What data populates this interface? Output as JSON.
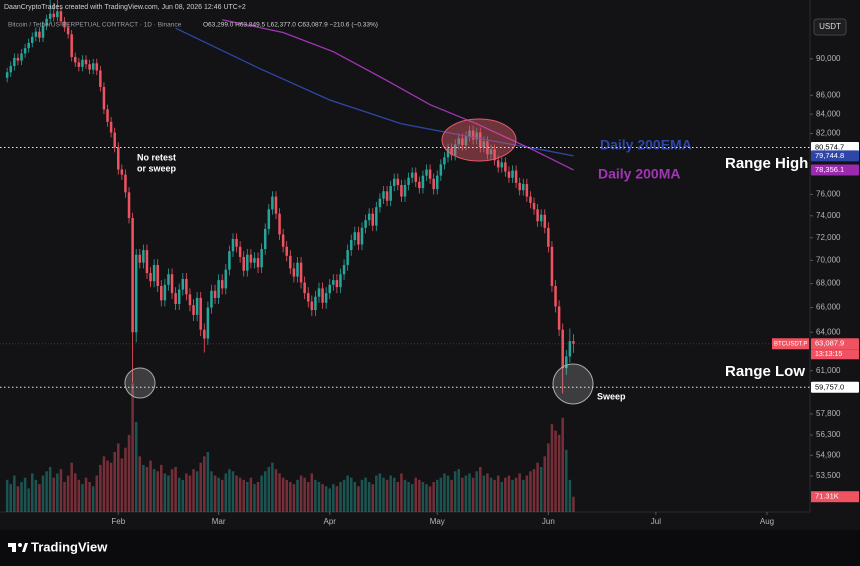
{
  "chart_data": {
    "type": "candlestick",
    "header": "DaanCryptoTrades created with TradingView.com, Jun 08, 2026 12:46 UTC+2",
    "symbol": "Bitcoin / TetherUS PERPETUAL CONTRACT · 1D · Binance",
    "ohlc_text": "O63,299.0 H63,849.5 L62,377.0 C63,087.9 −210.6 (−0.33%)",
    "currency": "USDT",
    "footer": "TradingView",
    "up_color": "#26a69a",
    "down_color": "#ef5361",
    "ylog": true,
    "grid": false,
    "ylim": [
      51150,
      94700
    ],
    "yticks": [
      {
        "value": 90000,
        "label": "90,000"
      },
      {
        "value": 86000,
        "label": "86,000"
      },
      {
        "value": 84000,
        "label": "84,000"
      },
      {
        "value": 82000,
        "label": "82,000"
      },
      {
        "value": 76000,
        "label": "76,000"
      },
      {
        "value": 74000,
        "label": "74,000"
      },
      {
        "value": 72000,
        "label": "72,000"
      },
      {
        "value": 70000,
        "label": "70,000"
      },
      {
        "value": 68000,
        "label": "68,000"
      },
      {
        "value": 66000,
        "label": "66,000"
      },
      {
        "value": 64000,
        "label": "64,000"
      },
      {
        "value": 61000,
        "label": "61,000"
      },
      {
        "value": 57800,
        "label": "57,800"
      },
      {
        "value": 56300,
        "label": "56,300"
      },
      {
        "value": 54900,
        "label": "54,900"
      },
      {
        "value": 53500,
        "label": "53,500"
      }
    ],
    "xlim": [
      -2,
      224
    ],
    "xticks": [
      {
        "value": 31,
        "label": "Feb"
      },
      {
        "value": 59,
        "label": "Mar"
      },
      {
        "value": 90,
        "label": "Apr"
      },
      {
        "value": 120,
        "label": "May"
      },
      {
        "value": 151,
        "label": "Jun"
      },
      {
        "value": 181,
        "label": "Jul"
      },
      {
        "value": 212,
        "label": "Aug"
      }
    ],
    "x": [
      0,
      1,
      2,
      3,
      4,
      5,
      6,
      7,
      8,
      9,
      10,
      11,
      12,
      13,
      14,
      15,
      16,
      17,
      18,
      19,
      20,
      21,
      22,
      23,
      24,
      25,
      26,
      27,
      28,
      29,
      30,
      31,
      32,
      33,
      34,
      35,
      36,
      37,
      38,
      39,
      40,
      41,
      42,
      43,
      44,
      45,
      46,
      47,
      48,
      49,
      50,
      51,
      52,
      53,
      54,
      55,
      56,
      57,
      58,
      59,
      60,
      61,
      62,
      63,
      64,
      65,
      66,
      67,
      68,
      69,
      70,
      71,
      72,
      73,
      74,
      75,
      76,
      77,
      78,
      79,
      80,
      81,
      82,
      83,
      84,
      85,
      86,
      87,
      88,
      89,
      90,
      91,
      92,
      93,
      94,
      95,
      96,
      97,
      98,
      99,
      100,
      101,
      102,
      103,
      104,
      105,
      106,
      107,
      108,
      109,
      110,
      111,
      112,
      113,
      114,
      115,
      116,
      117,
      118,
      119,
      120,
      121,
      122,
      123,
      124,
      125,
      126,
      127,
      128,
      129,
      130,
      131,
      132,
      133,
      134,
      135,
      136,
      137,
      138,
      139,
      140,
      141,
      142,
      143,
      144,
      145,
      146,
      147,
      148,
      149,
      150,
      151,
      152,
      153,
      154,
      155,
      156,
      157,
      158
    ],
    "open": [
      87900,
      88500,
      89200,
      90100,
      89800,
      90600,
      91200,
      91800,
      92500,
      93100,
      92400,
      93800,
      94600,
      95200,
      94800,
      95500,
      94300,
      93600,
      92800,
      90200,
      89600,
      89100,
      89900,
      89400,
      88800,
      89500,
      88700,
      86900,
      84500,
      83200,
      82100,
      80600,
      78400,
      77900,
      76200,
      73800,
      64000,
      70500,
      69800,
      70900,
      68900,
      68200,
      69600,
      67800,
      66600,
      67900,
      68800,
      67200,
      66300,
      67500,
      68400,
      67100,
      66200,
      65400,
      66800,
      64200,
      63500,
      66000,
      67400,
      66800,
      68300,
      67600,
      69200,
      70800,
      71900,
      71200,
      70300,
      69100,
      70500,
      69800,
      70200,
      69400,
      71000,
      72800,
      74600,
      75800,
      74200,
      72300,
      71200,
      70400,
      69300,
      68600,
      69800,
      68100,
      67200,
      66500,
      65800,
      66900,
      67600,
      66400,
      67200,
      67900,
      68300,
      67700,
      68800,
      69600,
      70900,
      71800,
      72500,
      71400,
      72900,
      73600,
      74200,
      73100,
      74800,
      75600,
      76300,
      75400,
      76800,
      77500,
      76900,
      75800,
      76900,
      77600,
      78100,
      77200,
      76600,
      77800,
      78400,
      77500,
      76500,
      77800,
      78900,
      79600,
      80500,
      79800,
      80900,
      81500,
      80800,
      81700,
      82300,
      81400,
      82100,
      80600,
      81200,
      79900,
      80400,
      79300,
      78600,
      79100,
      78200,
      77600,
      78300,
      77100,
      76400,
      77000,
      75800,
      75200,
      74600,
      73500,
      74100,
      72900,
      71200,
      67800,
      66100,
      64200,
      61200,
      62100,
      63299
    ],
    "high": [
      89000,
      89700,
      90600,
      90600,
      91100,
      91700,
      92300,
      93000,
      93600,
      93600,
      94300,
      95100,
      97000,
      96500,
      97400,
      96000,
      94800,
      94100,
      93300,
      90700,
      90100,
      90400,
      90400,
      89900,
      90000,
      90000,
      89200,
      87400,
      85000,
      83700,
      82600,
      81100,
      78900,
      78400,
      76700,
      74300,
      71000,
      71000,
      71400,
      71400,
      69400,
      70100,
      70100,
      68300,
      68400,
      69300,
      69300,
      67700,
      68000,
      68900,
      68900,
      67600,
      66700,
      67300,
      67300,
      64700,
      66500,
      67900,
      67900,
      68800,
      68800,
      69700,
      71300,
      72400,
      72400,
      71700,
      70800,
      71000,
      71000,
      70700,
      70700,
      71500,
      73300,
      75100,
      76300,
      76300,
      74700,
      72800,
      71700,
      70900,
      69800,
      70300,
      70300,
      68600,
      67700,
      67000,
      67400,
      68100,
      68100,
      67700,
      68400,
      68800,
      68800,
      69300,
      70100,
      71400,
      72300,
      73000,
      73000,
      73400,
      74100,
      74700,
      74700,
      75300,
      76100,
      76800,
      76800,
      77300,
      78000,
      78000,
      77400,
      77400,
      78100,
      78600,
      78600,
      77700,
      78300,
      78900,
      78900,
      78000,
      78300,
      79400,
      80100,
      81000,
      81000,
      81400,
      82000,
      82000,
      82200,
      82800,
      82800,
      82600,
      82600,
      81700,
      81700,
      80900,
      80900,
      79800,
      79600,
      79600,
      78700,
      78800,
      78800,
      77600,
      77500,
      77500,
      76300,
      75700,
      75100,
      74600,
      74600,
      73400,
      71700,
      68300,
      66600,
      64700,
      62600,
      64300,
      63849.5
    ],
    "low": [
      87400,
      88000,
      88700,
      89300,
      89300,
      90100,
      90700,
      91300,
      92000,
      91900,
      91900,
      93300,
      94100,
      94300,
      94300,
      93800,
      93100,
      92300,
      89700,
      89100,
      88600,
      88600,
      88900,
      88300,
      88300,
      88200,
      86400,
      84000,
      82700,
      81600,
      80100,
      77900,
      77400,
      75700,
      73300,
      60100,
      63200,
      69300,
      69300,
      68400,
      67700,
      67700,
      67300,
      66100,
      66100,
      67400,
      66700,
      65800,
      65800,
      67000,
      66600,
      65700,
      64900,
      64900,
      63700,
      62400,
      63000,
      65500,
      66300,
      66300,
      67100,
      67100,
      68700,
      70300,
      70700,
      69800,
      68600,
      68600,
      69300,
      69300,
      68900,
      68900,
      70500,
      72300,
      74100,
      73700,
      71800,
      70700,
      69900,
      68800,
      68100,
      68100,
      67600,
      66700,
      66000,
      65300,
      65300,
      66400,
      65900,
      65900,
      66700,
      67400,
      67200,
      67200,
      68300,
      69100,
      70400,
      71300,
      70900,
      70900,
      72400,
      73100,
      72600,
      72600,
      74300,
      75100,
      74900,
      74900,
      76300,
      76400,
      75300,
      75300,
      76400,
      77100,
      76700,
      76100,
      76100,
      77300,
      77000,
      76000,
      76000,
      77300,
      78400,
      79100,
      79300,
      79300,
      80400,
      80300,
      80300,
      81200,
      80900,
      80900,
      80100,
      80100,
      79400,
      79400,
      78800,
      78100,
      78100,
      77700,
      77100,
      77100,
      76600,
      75900,
      75900,
      75300,
      74700,
      74100,
      73000,
      73000,
      72400,
      70700,
      67300,
      65600,
      63700,
      59300,
      60700,
      61600,
      62377
    ],
    "close": [
      88500,
      89200,
      90100,
      89800,
      90600,
      91200,
      91800,
      92500,
      93100,
      92400,
      93800,
      94600,
      95200,
      94800,
      95500,
      94300,
      93600,
      92800,
      90200,
      89600,
      89100,
      89900,
      89400,
      88800,
      89500,
      88700,
      86900,
      84500,
      83200,
      82100,
      80600,
      78400,
      77900,
      76200,
      73800,
      64000,
      70500,
      69800,
      70900,
      68900,
      68200,
      69600,
      67800,
      66600,
      67900,
      68800,
      67200,
      66300,
      67500,
      68400,
      67100,
      66200,
      65400,
      66800,
      64200,
      63500,
      66000,
      67400,
      66800,
      68300,
      67600,
      69200,
      70800,
      71900,
      71200,
      70300,
      69100,
      70500,
      69800,
      70200,
      69400,
      71000,
      72800,
      74600,
      75800,
      74200,
      72300,
      71200,
      70400,
      69300,
      68600,
      69800,
      68100,
      67200,
      66500,
      65800,
      66900,
      67600,
      66400,
      67200,
      67900,
      68300,
      67700,
      68800,
      69600,
      70900,
      71800,
      72500,
      71400,
      72900,
      73600,
      74200,
      73100,
      74800,
      75600,
      76300,
      75400,
      76800,
      77500,
      76900,
      75800,
      76900,
      77600,
      78100,
      77200,
      76600,
      77800,
      78400,
      77500,
      76500,
      77800,
      78900,
      79600,
      80500,
      79800,
      80900,
      81500,
      80800,
      81700,
      82300,
      81400,
      82100,
      80600,
      81200,
      79900,
      80400,
      79300,
      78600,
      79100,
      78200,
      77600,
      78300,
      77100,
      76400,
      77000,
      75800,
      75200,
      74600,
      73500,
      74100,
      72900,
      71200,
      67800,
      66100,
      64200,
      61200,
      62100,
      63300,
      63087.9
    ],
    "volume": {
      "ylim": [
        0,
        700000
      ],
      "values": [
        150000,
        130000,
        170000,
        120000,
        140000,
        160000,
        110000,
        180000,
        150000,
        130000,
        170000,
        190000,
        210000,
        160000,
        180000,
        200000,
        140000,
        170000,
        230000,
        180000,
        150000,
        130000,
        160000,
        140000,
        120000,
        170000,
        220000,
        260000,
        240000,
        230000,
        280000,
        320000,
        250000,
        300000,
        360000,
        600000,
        420000,
        260000,
        220000,
        210000,
        240000,
        200000,
        190000,
        220000,
        180000,
        170000,
        200000,
        210000,
        160000,
        150000,
        180000,
        170000,
        200000,
        190000,
        230000,
        260000,
        280000,
        190000,
        170000,
        160000,
        150000,
        180000,
        200000,
        190000,
        170000,
        160000,
        150000,
        140000,
        160000,
        130000,
        140000,
        170000,
        190000,
        210000,
        230000,
        200000,
        180000,
        160000,
        150000,
        140000,
        130000,
        150000,
        170000,
        160000,
        140000,
        180000,
        150000,
        140000,
        130000,
        120000,
        110000,
        130000,
        120000,
        140000,
        150000,
        170000,
        160000,
        140000,
        120000,
        150000,
        160000,
        140000,
        130000,
        170000,
        180000,
        160000,
        150000,
        170000,
        160000,
        140000,
        180000,
        150000,
        140000,
        130000,
        160000,
        150000,
        140000,
        130000,
        120000,
        140000,
        150000,
        160000,
        180000,
        170000,
        150000,
        190000,
        200000,
        160000,
        170000,
        180000,
        160000,
        190000,
        210000,
        170000,
        180000,
        160000,
        150000,
        170000,
        140000,
        160000,
        170000,
        150000,
        160000,
        180000,
        150000,
        170000,
        190000,
        200000,
        230000,
        210000,
        260000,
        320000,
        410000,
        380000,
        360000,
        440000,
        290000,
        150000,
        71310
      ],
      "last_label": "71.31K"
    },
    "series": [
      {
        "name": "Daily 200EMA",
        "color": "#2e46a8",
        "x": [
          47,
          70,
          90,
          110,
          130,
          150,
          158
        ],
        "values": [
          93500,
          89000,
          85500,
          83000,
          81600,
          80300,
          79744.8
        ]
      },
      {
        "name": "Daily 200MA",
        "color": "#a235b5",
        "x": [
          60,
          77,
          91,
          105,
          118,
          131,
          147,
          158
        ],
        "values": [
          94500,
          93000,
          90800,
          87800,
          85000,
          83000,
          80300,
          78356.1
        ]
      }
    ],
    "price_tags": [
      {
        "value": 80574.7,
        "label": "80,574.7",
        "color": "#ffffff",
        "text_color": "#000000",
        "dotted": true
      },
      {
        "value": 79744.8,
        "label": "79,744.8",
        "color": "#2e46a8",
        "text_color": "#ffffff",
        "dotted": false
      },
      {
        "value": 78356.1,
        "label": "78,356.1",
        "color": "#9b2aae",
        "text_color": "#ffffff",
        "dotted": false
      },
      {
        "value": 63087.9,
        "label": "63,087.9",
        "color": "#ef5361",
        "text_color": "#ffffff",
        "dotted": false
      },
      {
        "value": 59757.0,
        "label": "59,757.0",
        "color": "#ffffff",
        "text_color": "#000000",
        "dotted": true
      }
    ],
    "current_symbol": "BTCUSDT.P",
    "countdown": "13:13:15",
    "annotations": {
      "range_high": "Range High",
      "range_low": "Range Low",
      "no_retest_1": "No retest",
      "no_retest_2": "or sweep",
      "sweep": "Sweep"
    }
  }
}
